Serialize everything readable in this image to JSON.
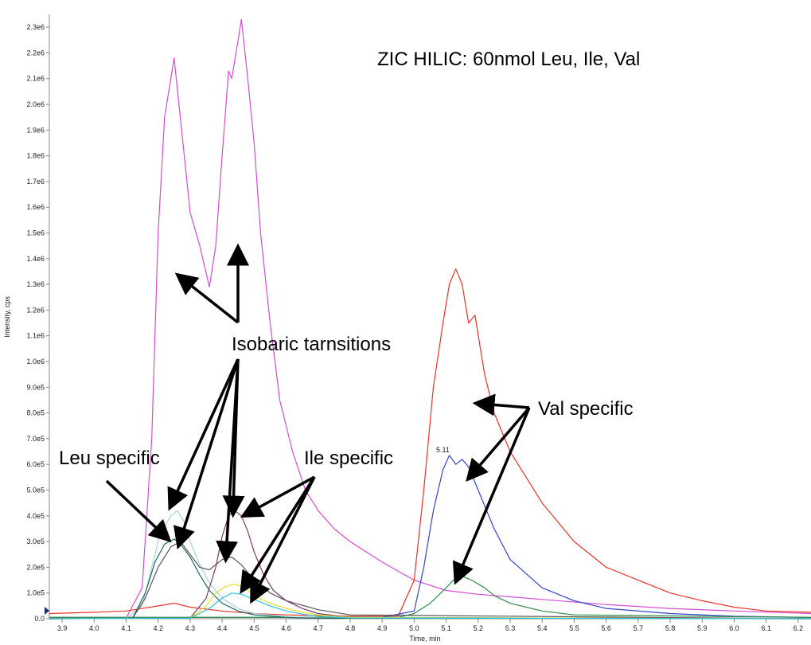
{
  "chart_data": {
    "type": "line",
    "title": "ZIC HILIC: 60nmol Leu, Ile, Val",
    "xlabel": "Time, min",
    "ylabel": "Intensity, cps",
    "xlim": [
      3.86,
      6.24
    ],
    "ylim": [
      0,
      2350000
    ],
    "x_ticks": [
      "3.9",
      "4.0",
      "4.1",
      "4.2",
      "4.3",
      "4.4",
      "4.5",
      "4.6",
      "4.7",
      "4.8",
      "4.9",
      "5.0",
      "5.1",
      "5.2",
      "5.3",
      "5.4",
      "5.5",
      "5.6",
      "5.7",
      "5.8",
      "5.9",
      "6.0",
      "6.1",
      "6.2"
    ],
    "y_ticks": [
      "0.0",
      "1.0e5",
      "2.0e5",
      "3.0e5",
      "4.0e5",
      "5.0e5",
      "6.0e5",
      "7.0e5",
      "8.0e5",
      "9.0e5",
      "1.0e6",
      "1.1e6",
      "1.2e6",
      "1.3e6",
      "1.4e6",
      "1.5e6",
      "1.6e6",
      "1.7e6",
      "1.8e6",
      "1.9e6",
      "2.0e6",
      "2.1e6",
      "2.2e6",
      "2.3e6"
    ],
    "grid": false,
    "series": [
      {
        "color": "#d44cd4",
        "x": [
          3.86,
          4.1,
          4.15,
          4.18,
          4.2,
          4.22,
          4.25,
          4.28,
          4.3,
          4.33,
          4.36,
          4.38,
          4.4,
          4.42,
          4.43,
          4.45,
          4.46,
          4.48,
          4.5,
          4.52,
          4.55,
          4.58,
          4.62,
          4.66,
          4.7,
          4.75,
          4.8,
          4.9,
          5.0,
          5.1,
          5.2,
          5.3,
          5.4,
          5.6,
          5.8,
          6.0,
          6.24
        ],
        "y": [
          0,
          3000,
          120000,
          700000,
          1500000,
          1950000,
          2180000,
          1820000,
          1580000,
          1450000,
          1290000,
          1450000,
          1800000,
          2130000,
          2100000,
          2250000,
          2330000,
          2100000,
          1850000,
          1500000,
          1150000,
          850000,
          650000,
          500000,
          420000,
          350000,
          300000,
          220000,
          150000,
          110000,
          95000,
          85000,
          75000,
          55000,
          40000,
          30000,
          20000
        ]
      },
      {
        "color": "#e8332a",
        "x": [
          3.86,
          4.0,
          4.1,
          4.2,
          4.25,
          4.3,
          4.4,
          4.5,
          4.6,
          4.8,
          4.95,
          5.0,
          5.03,
          5.06,
          5.09,
          5.11,
          5.13,
          5.15,
          5.17,
          5.19,
          5.22,
          5.25,
          5.3,
          5.4,
          5.5,
          5.6,
          5.7,
          5.8,
          5.9,
          6.0,
          6.1,
          6.24
        ],
        "y": [
          20000,
          25000,
          30000,
          50000,
          60000,
          45000,
          30000,
          20000,
          15000,
          10000,
          10000,
          150000,
          500000,
          900000,
          1150000,
          1300000,
          1360000,
          1300000,
          1150000,
          1180000,
          950000,
          800000,
          650000,
          450000,
          300000,
          200000,
          150000,
          100000,
          70000,
          45000,
          30000,
          25000
        ]
      },
      {
        "color": "#3344cc",
        "x": [
          3.86,
          4.9,
          5.0,
          5.03,
          5.06,
          5.09,
          5.11,
          5.13,
          5.15,
          5.17,
          5.2,
          5.25,
          5.3,
          5.4,
          5.5,
          5.6,
          5.8,
          6.0,
          6.24
        ],
        "y": [
          5000,
          5000,
          30000,
          200000,
          420000,
          580000,
          635000,
          600000,
          620000,
          590000,
          500000,
          350000,
          230000,
          120000,
          70000,
          40000,
          20000,
          10000,
          5000
        ]
      },
      {
        "color": "#2e8b4a",
        "x": [
          3.86,
          4.95,
          5.0,
          5.05,
          5.1,
          5.13,
          5.15,
          5.18,
          5.22,
          5.25,
          5.3,
          5.4,
          5.5,
          6.24
        ],
        "y": [
          5000,
          5000,
          20000,
          60000,
          120000,
          160000,
          165000,
          150000,
          120000,
          90000,
          60000,
          30000,
          15000,
          5000
        ]
      },
      {
        "color": "#a8d0dc",
        "x": [
          3.86,
          4.1,
          4.15,
          4.18,
          4.2,
          4.22,
          4.24,
          4.26,
          4.28,
          4.3,
          4.33,
          4.36,
          4.4,
          4.45,
          4.5,
          4.6,
          4.7,
          4.8,
          6.24
        ],
        "y": [
          0,
          2000,
          50000,
          200000,
          300000,
          360000,
          400000,
          420000,
          380000,
          300000,
          210000,
          140000,
          80000,
          40000,
          20000,
          8000,
          3000,
          1000,
          0
        ]
      },
      {
        "color": "#1a6b60",
        "x": [
          3.86,
          4.12,
          4.16,
          4.19,
          4.22,
          4.25,
          4.27,
          4.3,
          4.33,
          4.36,
          4.4,
          4.45,
          4.5,
          4.6,
          4.7,
          6.24
        ],
        "y": [
          0,
          2000,
          100000,
          220000,
          290000,
          310000,
          290000,
          240000,
          170000,
          110000,
          60000,
          30000,
          15000,
          5000,
          2000,
          0
        ]
      },
      {
        "color": "#555555",
        "x": [
          3.86,
          4.12,
          4.16,
          4.2,
          4.24,
          4.27,
          4.3,
          4.33,
          4.36,
          4.4,
          4.43,
          4.46,
          4.5,
          4.55,
          4.6,
          4.7,
          4.8,
          6.24
        ],
        "y": [
          0,
          2000,
          80000,
          200000,
          280000,
          300000,
          250000,
          200000,
          190000,
          230000,
          240000,
          210000,
          150000,
          100000,
          70000,
          35000,
          15000,
          0
        ]
      },
      {
        "color": "#7a3a6e",
        "x": [
          3.86,
          4.3,
          4.35,
          4.38,
          4.4,
          4.42,
          4.44,
          4.46,
          4.48,
          4.5,
          4.53,
          4.56,
          4.6,
          4.65,
          4.7,
          4.8,
          6.24
        ],
        "y": [
          0,
          2000,
          80000,
          200000,
          320000,
          400000,
          420000,
          400000,
          340000,
          260000,
          170000,
          110000,
          70000,
          40000,
          20000,
          5000,
          0
        ]
      },
      {
        "color": "#e8e020",
        "x": [
          3.86,
          4.3,
          4.35,
          4.38,
          4.41,
          4.44,
          4.47,
          4.5,
          4.55,
          4.6,
          4.65,
          4.7,
          4.8,
          6.24
        ],
        "y": [
          0,
          2000,
          50000,
          100000,
          125000,
          135000,
          120000,
          90000,
          60000,
          40000,
          25000,
          15000,
          5000,
          0
        ]
      },
      {
        "color": "#30c0e0",
        "x": [
          3.86,
          4.3,
          4.36,
          4.4,
          4.43,
          4.46,
          4.5,
          4.55,
          4.6,
          4.65,
          4.7,
          4.8,
          6.24
        ],
        "y": [
          0,
          2000,
          40000,
          80000,
          100000,
          95000,
          75000,
          50000,
          30000,
          18000,
          10000,
          3000,
          0
        ]
      }
    ],
    "peak_label": {
      "text": "5.11",
      "x": 5.11,
      "y": 635000
    },
    "annotations": [
      {
        "text": "ZIC HILIC: 60nmol Leu, Ile, Val"
      },
      {
        "text": "Isobaric tarnsitions"
      },
      {
        "text": "Leu specific"
      },
      {
        "text": "Ile specific"
      },
      {
        "text": "Val specific"
      }
    ]
  }
}
